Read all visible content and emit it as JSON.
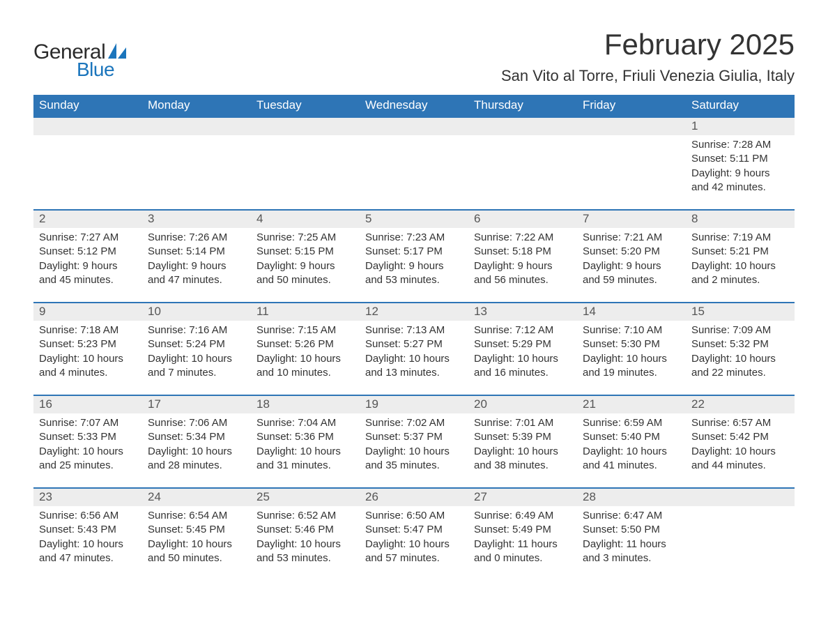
{
  "brand": {
    "word1": "General",
    "word2": "Blue",
    "sail_color": "#1b75bc",
    "text_color_dark": "#2b2b2b"
  },
  "title": {
    "month": "February 2025",
    "location": "San Vito al Torre, Friuli Venezia Giulia, Italy"
  },
  "colors": {
    "header_bg": "#2e75b6",
    "header_text": "#ffffff",
    "daynum_bg": "#ededed",
    "body_text": "#333333",
    "rule": "#2e75b6"
  },
  "weekdays": [
    "Sunday",
    "Monday",
    "Tuesday",
    "Wednesday",
    "Thursday",
    "Friday",
    "Saturday"
  ],
  "weeks": [
    [
      null,
      null,
      null,
      null,
      null,
      null,
      {
        "n": "1",
        "sunrise": "7:28 AM",
        "sunset": "5:11 PM",
        "daylight": "9 hours and 42 minutes."
      }
    ],
    [
      {
        "n": "2",
        "sunrise": "7:27 AM",
        "sunset": "5:12 PM",
        "daylight": "9 hours and 45 minutes."
      },
      {
        "n": "3",
        "sunrise": "7:26 AM",
        "sunset": "5:14 PM",
        "daylight": "9 hours and 47 minutes."
      },
      {
        "n": "4",
        "sunrise": "7:25 AM",
        "sunset": "5:15 PM",
        "daylight": "9 hours and 50 minutes."
      },
      {
        "n": "5",
        "sunrise": "7:23 AM",
        "sunset": "5:17 PM",
        "daylight": "9 hours and 53 minutes."
      },
      {
        "n": "6",
        "sunrise": "7:22 AM",
        "sunset": "5:18 PM",
        "daylight": "9 hours and 56 minutes."
      },
      {
        "n": "7",
        "sunrise": "7:21 AM",
        "sunset": "5:20 PM",
        "daylight": "9 hours and 59 minutes."
      },
      {
        "n": "8",
        "sunrise": "7:19 AM",
        "sunset": "5:21 PM",
        "daylight": "10 hours and 2 minutes."
      }
    ],
    [
      {
        "n": "9",
        "sunrise": "7:18 AM",
        "sunset": "5:23 PM",
        "daylight": "10 hours and 4 minutes."
      },
      {
        "n": "10",
        "sunrise": "7:16 AM",
        "sunset": "5:24 PM",
        "daylight": "10 hours and 7 minutes."
      },
      {
        "n": "11",
        "sunrise": "7:15 AM",
        "sunset": "5:26 PM",
        "daylight": "10 hours and 10 minutes."
      },
      {
        "n": "12",
        "sunrise": "7:13 AM",
        "sunset": "5:27 PM",
        "daylight": "10 hours and 13 minutes."
      },
      {
        "n": "13",
        "sunrise": "7:12 AM",
        "sunset": "5:29 PM",
        "daylight": "10 hours and 16 minutes."
      },
      {
        "n": "14",
        "sunrise": "7:10 AM",
        "sunset": "5:30 PM",
        "daylight": "10 hours and 19 minutes."
      },
      {
        "n": "15",
        "sunrise": "7:09 AM",
        "sunset": "5:32 PM",
        "daylight": "10 hours and 22 minutes."
      }
    ],
    [
      {
        "n": "16",
        "sunrise": "7:07 AM",
        "sunset": "5:33 PM",
        "daylight": "10 hours and 25 minutes."
      },
      {
        "n": "17",
        "sunrise": "7:06 AM",
        "sunset": "5:34 PM",
        "daylight": "10 hours and 28 minutes."
      },
      {
        "n": "18",
        "sunrise": "7:04 AM",
        "sunset": "5:36 PM",
        "daylight": "10 hours and 31 minutes."
      },
      {
        "n": "19",
        "sunrise": "7:02 AM",
        "sunset": "5:37 PM",
        "daylight": "10 hours and 35 minutes."
      },
      {
        "n": "20",
        "sunrise": "7:01 AM",
        "sunset": "5:39 PM",
        "daylight": "10 hours and 38 minutes."
      },
      {
        "n": "21",
        "sunrise": "6:59 AM",
        "sunset": "5:40 PM",
        "daylight": "10 hours and 41 minutes."
      },
      {
        "n": "22",
        "sunrise": "6:57 AM",
        "sunset": "5:42 PM",
        "daylight": "10 hours and 44 minutes."
      }
    ],
    [
      {
        "n": "23",
        "sunrise": "6:56 AM",
        "sunset": "5:43 PM",
        "daylight": "10 hours and 47 minutes."
      },
      {
        "n": "24",
        "sunrise": "6:54 AM",
        "sunset": "5:45 PM",
        "daylight": "10 hours and 50 minutes."
      },
      {
        "n": "25",
        "sunrise": "6:52 AM",
        "sunset": "5:46 PM",
        "daylight": "10 hours and 53 minutes."
      },
      {
        "n": "26",
        "sunrise": "6:50 AM",
        "sunset": "5:47 PM",
        "daylight": "10 hours and 57 minutes."
      },
      {
        "n": "27",
        "sunrise": "6:49 AM",
        "sunset": "5:49 PM",
        "daylight": "11 hours and 0 minutes."
      },
      {
        "n": "28",
        "sunrise": "6:47 AM",
        "sunset": "5:50 PM",
        "daylight": "11 hours and 3 minutes."
      },
      null
    ]
  ],
  "labels": {
    "sunrise": "Sunrise: ",
    "sunset": "Sunset: ",
    "daylight": "Daylight: "
  }
}
